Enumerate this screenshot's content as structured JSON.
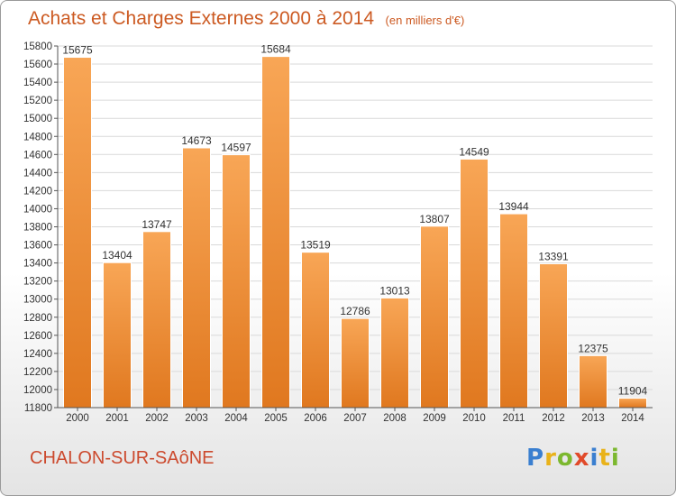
{
  "header": {
    "title": "Achats et Charges Externes 2000 à 2014",
    "unit_note": "(en milliers d'€)"
  },
  "footer": {
    "city": "CHALON-SUR-SAôNE",
    "logo_letters": [
      {
        "ch": "P",
        "color": "#3a7fd0"
      },
      {
        "ch": "r",
        "color": "#e9b21a"
      },
      {
        "ch": "o",
        "color": "#7cb82f"
      },
      {
        "ch": "x",
        "color": "#e14a2a"
      },
      {
        "ch": "i",
        "color": "#3a7fd0"
      },
      {
        "ch": "t",
        "color": "#e9b21a"
      },
      {
        "ch": "i",
        "color": "#7cb82f"
      }
    ]
  },
  "colors": {
    "title": "#cc5a22",
    "bar_light": "#f8a656",
    "bar_dark": "#e0781f",
    "axis": "#555555",
    "grid": "#d9d9d9"
  },
  "chart_data": {
    "type": "bar",
    "categories": [
      "2000",
      "2001",
      "2002",
      "2003",
      "2004",
      "2005",
      "2006",
      "2007",
      "2008",
      "2009",
      "2010",
      "2011",
      "2012",
      "2013",
      "2014"
    ],
    "values": [
      15675,
      13404,
      13747,
      14673,
      14597,
      15684,
      13519,
      12786,
      13013,
      13807,
      14549,
      13944,
      13391,
      12375,
      11904
    ],
    "ylim": [
      11800,
      15800
    ],
    "ytick_step": 200,
    "data_labels": true,
    "grid": "horizontal"
  }
}
